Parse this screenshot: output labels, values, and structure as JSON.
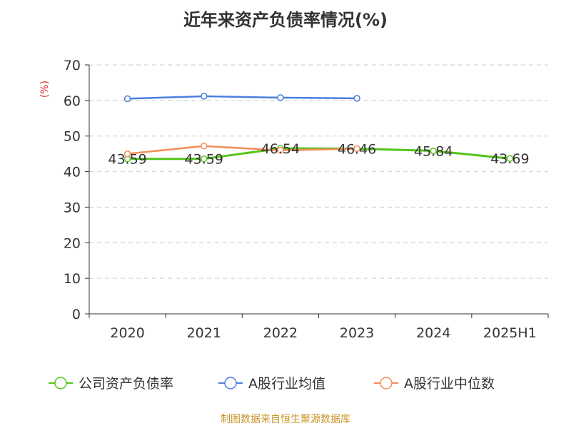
{
  "title": "近年来资产负债率情况(%)",
  "source": "制图数据来自恒生聚源数据库",
  "chart_data": {
    "type": "line",
    "title": "近年来资产负债率情况(%)",
    "ylabel": "(%)",
    "xlabel": "",
    "ylim": [
      0,
      70
    ],
    "yticks": [
      0,
      10,
      20,
      30,
      40,
      50,
      60,
      70
    ],
    "categories": [
      "2020",
      "2021",
      "2022",
      "2023",
      "2024",
      "2025H1"
    ],
    "grid": true,
    "legend_position": "bottom",
    "series": [
      {
        "name": "公司资产负债率",
        "color": "#52c41a",
        "values": [
          43.59,
          43.59,
          46.54,
          46.46,
          45.84,
          43.69
        ],
        "labels": true
      },
      {
        "name": "A股行业均值",
        "color": "#4a7fe0",
        "values": [
          60.5,
          61.2,
          60.8,
          60.6,
          null,
          null
        ],
        "labels": false
      },
      {
        "name": "A股行业中位数",
        "color": "#f28c5a",
        "values": [
          45.0,
          47.2,
          46.0,
          46.46,
          null,
          null
        ],
        "labels": false
      }
    ]
  }
}
